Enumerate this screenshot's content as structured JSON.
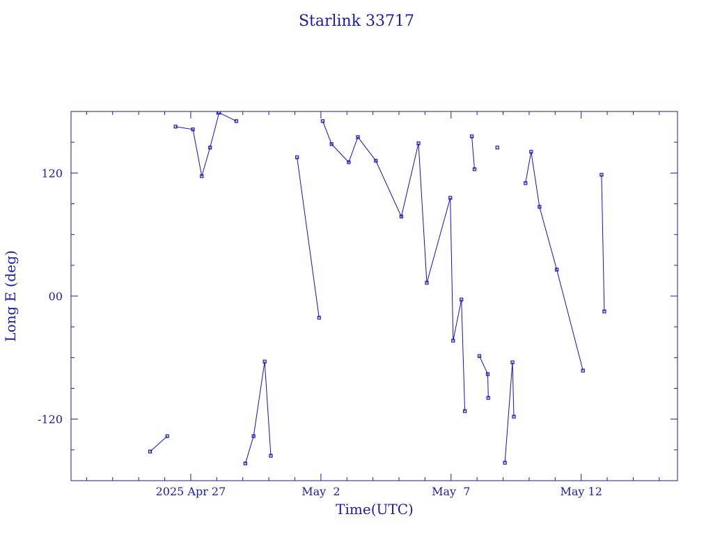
{
  "chart_data": {
    "type": "line",
    "title": "Starlink 33717",
    "xlabel": "Time(UTC)",
    "ylabel": "Long E (deg)",
    "color": "#1010c0",
    "marker": "square",
    "xlim": [
      "2025-04-22T09:36",
      "2025-05-15T16:48"
    ],
    "ylim": [
      -180,
      180
    ],
    "yticks": [
      -120,
      {
        "value": 0,
        "label": "00"
      },
      120
    ],
    "yminorticks": [
      -150,
      -90,
      -60,
      -30,
      30,
      60,
      90,
      150
    ],
    "xticks": [
      {
        "value": "2025-04-27",
        "label": "2025 Apr 27"
      },
      {
        "value": "2025-05-02",
        "label": "May  2"
      },
      {
        "value": "2025-05-07",
        "label": "May  7"
      },
      {
        "value": "2025-05-12",
        "label": "May 12"
      }
    ],
    "xminorticks": [
      "2025-04-23",
      "2025-04-24",
      "2025-04-25",
      "2025-04-26",
      "2025-04-28",
      "2025-04-29",
      "2025-04-30",
      "2025-05-01",
      "2025-05-03",
      "2025-05-04",
      "2025-05-05",
      "2025-05-06",
      "2025-05-08",
      "2025-05-09",
      "2025-05-10",
      "2025-05-11",
      "2025-05-13",
      "2025-05-14",
      "2025-05-15"
    ],
    "x": [
      "2025-04-25T10:30",
      "2025-04-26T02:20",
      "2025-04-26T06:00",
      "2025-04-26T10:00",
      "2025-04-27T02:00",
      "2025-04-27T10:10",
      "2025-04-27T17:50",
      "2025-04-28T02:10",
      "2025-04-28T18:00",
      "2025-04-28T22:00",
      "2025-04-29T02:20",
      "2025-04-29T09:55",
      "2025-04-29T20:10",
      "2025-04-30T01:50",
      "2025-04-30T12:00",
      "2025-05-01T02:00",
      "2025-05-01T22:20",
      "2025-05-02T00:30",
      "2025-05-02T01:40",
      "2025-05-02T09:50",
      "2025-05-03T01:40",
      "2025-05-03T10:05",
      "2025-05-04T02:40",
      "2025-05-05T02:10",
      "2025-05-05T18:00",
      "2025-05-06T01:40",
      "2025-05-06T23:20",
      "2025-05-07T01:55",
      "2025-05-07T09:35",
      "2025-05-07T12:45",
      "2025-05-07T16:00",
      "2025-05-07T19:10",
      "2025-05-07T21:40",
      "2025-05-08T00:00",
      "2025-05-08T02:10",
      "2025-05-08T09:50",
      "2025-05-08T10:20",
      "2025-05-08T15:00",
      "2025-05-08T18:40",
      "2025-05-08T22:00",
      "2025-05-09T01:40",
      "2025-05-09T08:40",
      "2025-05-09T09:55",
      "2025-05-09T15:00",
      "2025-05-09T20:40",
      "2025-05-10T01:50",
      "2025-05-10T09:35",
      "2025-05-11T01:30",
      "2025-05-12T01:40",
      "2025-05-12T12:00",
      "2025-05-12T18:45",
      "2025-05-12T21:20"
    ],
    "values": [
      -151.6,
      -136.6,
      null,
      165.2,
      162.5,
      116.9,
      144.8,
      178.8,
      170.6,
      null,
      -163.2,
      -136.6,
      -63.9,
      -155.7,
      null,
      135.3,
      -21.1,
      null,
      170.6,
      148.2,
      130.5,
      155,
      131.9,
      77.5,
      148.9,
      12.9,
      95.8,
      -43.5,
      -3.4,
      -112.2,
      null,
      155.7,
      123.7,
      null,
      -58.5,
      -76.1,
      -99.3,
      null,
      144.8,
      null,
      -162.5,
      -64.6,
      -117.6,
      null,
      110.1,
      140.7,
      87,
      25.8,
      -72.7,
      null,
      118.3,
      -15
    ]
  }
}
